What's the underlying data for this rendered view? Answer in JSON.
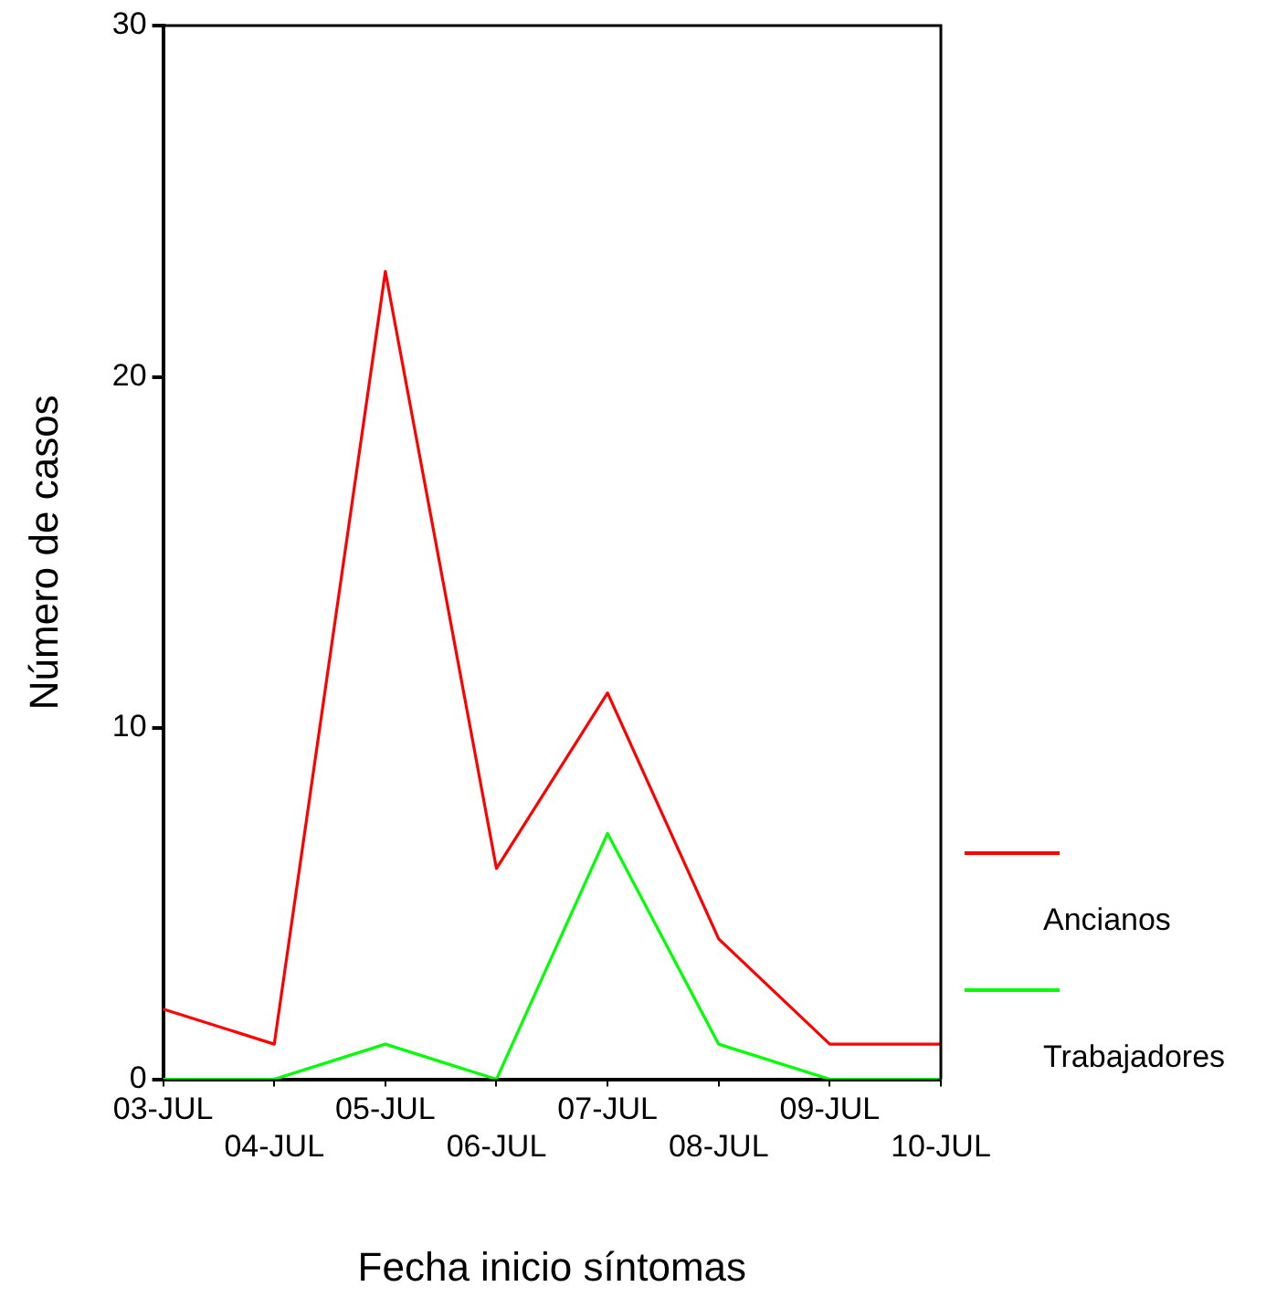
{
  "chart_data": {
    "type": "line",
    "xlabel": "Fecha inicio síntomas",
    "ylabel": "Número de casos",
    "categories": [
      "03-JUL",
      "04-JUL",
      "05-JUL",
      "06-JUL",
      "07-JUL",
      "08-JUL",
      "09-JUL",
      "10-JUL"
    ],
    "series": [
      {
        "name": "Ancianos",
        "color": "#ff0000",
        "values": [
          2,
          1,
          23,
          6,
          11,
          4,
          1,
          1
        ]
      },
      {
        "name": "Trabajadores",
        "color": "#00ff00",
        "values": [
          0,
          0,
          1,
          0,
          7,
          1,
          0,
          0
        ]
      }
    ],
    "ylim": [
      0,
      30
    ],
    "yticks": [
      0,
      10,
      20,
      30
    ],
    "grid": false,
    "legend": "right",
    "marker": "none",
    "line_style": "solid"
  }
}
